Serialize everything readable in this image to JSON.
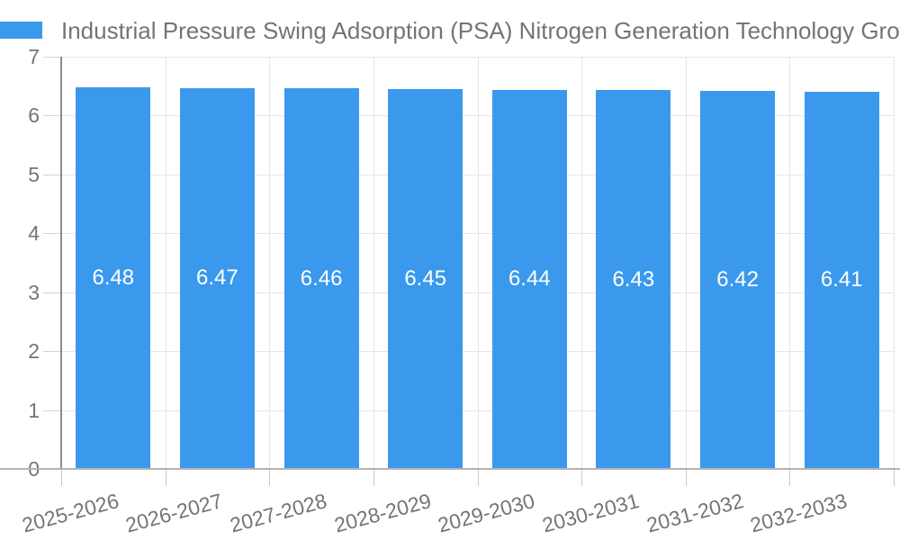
{
  "chart_data": {
    "type": "bar",
    "title": "Industrial Pressure Swing Adsorption (PSA) Nitrogen Generation Technology Growth (%",
    "categories": [
      "2025-2026",
      "2026-2027",
      "2027-2028",
      "2028-2029",
      "2029-2030",
      "2030-2031",
      "2031-2032",
      "2032-2033"
    ],
    "values": [
      6.48,
      6.47,
      6.46,
      6.45,
      6.44,
      6.43,
      6.42,
      6.41
    ],
    "value_labels": [
      "6.48",
      "6.47",
      "6.46",
      "6.45",
      "6.44",
      "6.43",
      "6.42",
      "6.41"
    ],
    "ylim": [
      0,
      7
    ],
    "yticks": [
      0,
      1,
      2,
      3,
      4,
      5,
      6,
      7
    ],
    "xlabel": "",
    "ylabel": "",
    "grid": true,
    "legend_position": "top-left",
    "colors": {
      "bar": "#3A99EC",
      "grid": "#e6e6e6",
      "y_axis": "#8c8c8c",
      "x_axis": "#b3b3b3",
      "tick": "#c9c9c9",
      "text": "#757575",
      "value_label": "#ffffff"
    }
  }
}
